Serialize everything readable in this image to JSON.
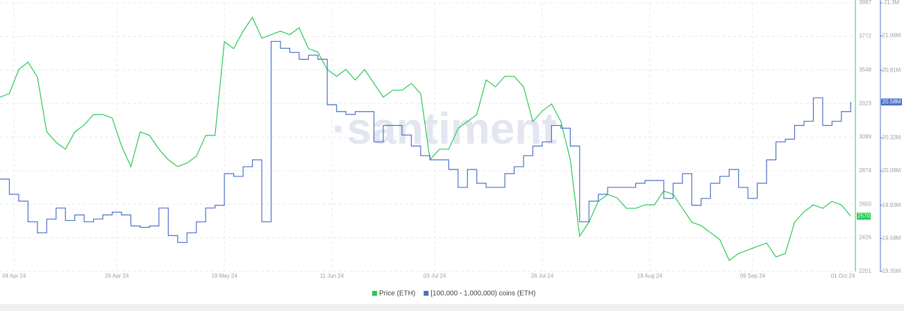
{
  "chart_data": {
    "type": "line",
    "watermark": "·santiment",
    "x": [
      "2024-04-01",
      "2024-04-03",
      "2024-04-05",
      "2024-04-07",
      "2024-04-09",
      "2024-04-11",
      "2024-04-13",
      "2024-04-15",
      "2024-04-17",
      "2024-04-19",
      "2024-04-21",
      "2024-04-23",
      "2024-04-25",
      "2024-04-27",
      "2024-04-29",
      "2024-05-01",
      "2024-05-03",
      "2024-05-05",
      "2024-05-07",
      "2024-05-09",
      "2024-05-11",
      "2024-05-13",
      "2024-05-15",
      "2024-05-17",
      "2024-05-19",
      "2024-05-21",
      "2024-05-23",
      "2024-05-25",
      "2024-05-27",
      "2024-05-29",
      "2024-05-31",
      "2024-06-02",
      "2024-06-04",
      "2024-06-06",
      "2024-06-08",
      "2024-06-10",
      "2024-06-12",
      "2024-06-14",
      "2024-06-16",
      "2024-06-18",
      "2024-06-20",
      "2024-06-22",
      "2024-06-24",
      "2024-06-26",
      "2024-06-28",
      "2024-06-30",
      "2024-07-02",
      "2024-07-04",
      "2024-07-06",
      "2024-07-08",
      "2024-07-10",
      "2024-07-12",
      "2024-07-14",
      "2024-07-16",
      "2024-07-18",
      "2024-07-20",
      "2024-07-22",
      "2024-07-24",
      "2024-07-26",
      "2024-07-28",
      "2024-07-30",
      "2024-08-01",
      "2024-08-03",
      "2024-08-05",
      "2024-08-07",
      "2024-08-09",
      "2024-08-11",
      "2024-08-13",
      "2024-08-15",
      "2024-08-17",
      "2024-08-19",
      "2024-08-21",
      "2024-08-23",
      "2024-08-25",
      "2024-08-27",
      "2024-08-29",
      "2024-08-31",
      "2024-09-02",
      "2024-09-04",
      "2024-09-06",
      "2024-09-08",
      "2024-09-10",
      "2024-09-12",
      "2024-09-14",
      "2024-09-16",
      "2024-09-18",
      "2024-09-20",
      "2024-09-22",
      "2024-09-24",
      "2024-09-26",
      "2024-09-28",
      "2024-09-30"
    ],
    "xlim": [
      "2024-04-01",
      "2024-10-01"
    ],
    "xticks": [
      {
        "value": "2024-04-04",
        "label": "04 Apr 24"
      },
      {
        "value": "2024-04-26",
        "label": "26 Apr 24"
      },
      {
        "value": "2024-05-19",
        "label": "19 May 24"
      },
      {
        "value": "2024-06-11",
        "label": "11 Jun 24"
      },
      {
        "value": "2024-07-03",
        "label": "03 Jul 24"
      },
      {
        "value": "2024-07-26",
        "label": "26 Jul 24"
      },
      {
        "value": "2024-08-18",
        "label": "18 Aug 24"
      },
      {
        "value": "2024-09-09",
        "label": "09 Sep 24"
      },
      {
        "value": "2024-10-01",
        "label": "01 Oct 24"
      }
    ],
    "ylim": [
      2201,
      3997
    ],
    "yticks": [
      2201,
      2426,
      2650,
      2874,
      3099,
      3323,
      3548,
      3772,
      3997
    ],
    "y2lim": [
      19350000,
      21300000
    ],
    "y2ticks": [
      {
        "value": 19350000,
        "label": "19.35M"
      },
      {
        "value": 19590000,
        "label": "19.59M"
      },
      {
        "value": 19830000,
        "label": "19.83M"
      },
      {
        "value": 20080000,
        "label": "20.08M"
      },
      {
        "value": 20320000,
        "label": "20.32M"
      },
      {
        "value": 20580000,
        "label": "20.58M"
      },
      {
        "value": 20810000,
        "label": "20.81M"
      },
      {
        "value": 21060000,
        "label": "21.06M"
      },
      {
        "value": 21300000,
        "label": "21.3M"
      }
    ],
    "grid": true,
    "series": [
      {
        "name": "Price (ETH)",
        "color": "#26c953",
        "axis": "y",
        "step": false,
        "current_label": "2570",
        "values": [
          3366,
          3390,
          3551,
          3600,
          3500,
          3134,
          3064,
          3018,
          3134,
          3180,
          3250,
          3250,
          3227,
          3041,
          2902,
          3134,
          3110,
          3018,
          2948,
          2902,
          2925,
          2971,
          3110,
          3110,
          3737,
          3690,
          3807,
          3900,
          3760,
          3784,
          3807,
          3784,
          3830,
          3690,
          3667,
          3551,
          3505,
          3551,
          3481,
          3551,
          3458,
          3366,
          3412,
          3412,
          3458,
          3389,
          2948,
          3018,
          3018,
          3157,
          3203,
          3250,
          3481,
          3435,
          3505,
          3505,
          3435,
          3203,
          3273,
          3320,
          3203,
          2948,
          2437,
          2530,
          2669,
          2716,
          2693,
          2623,
          2623,
          2646,
          2646,
          2739,
          2716,
          2623,
          2530,
          2507,
          2460,
          2414,
          2275,
          2321,
          2344,
          2368,
          2391,
          2298,
          2321,
          2530,
          2600,
          2646,
          2623,
          2669,
          2646,
          2570
        ]
      },
      {
        "name": "[100,000  - 1,000,000) coins (ETH)",
        "color": "#4a6fc9",
        "axis": "y2",
        "step": true,
        "current_label": "20.58M",
        "values": [
          20020000,
          19910000,
          19860000,
          19710000,
          19630000,
          19730000,
          19810000,
          19720000,
          19760000,
          19710000,
          19730000,
          19760000,
          19780000,
          19760000,
          19680000,
          19670000,
          19680000,
          19810000,
          19610000,
          19560000,
          19630000,
          19710000,
          19810000,
          19830000,
          20060000,
          20040000,
          20110000,
          20160000,
          19710000,
          21020000,
          20970000,
          20940000,
          20890000,
          20920000,
          20890000,
          20560000,
          20510000,
          20490000,
          20510000,
          20510000,
          20290000,
          20410000,
          20410000,
          20340000,
          20260000,
          20190000,
          20160000,
          20160000,
          20090000,
          19960000,
          20090000,
          19990000,
          19960000,
          19960000,
          20060000,
          20110000,
          20190000,
          20260000,
          20290000,
          20410000,
          20390000,
          20260000,
          19710000,
          19860000,
          19910000,
          19960000,
          19960000,
          19960000,
          19990000,
          20010000,
          20010000,
          19880000,
          19990000,
          20060000,
          19830000,
          19880000,
          19990000,
          20040000,
          20090000,
          19960000,
          19880000,
          19990000,
          20160000,
          20290000,
          20310000,
          20410000,
          20440000,
          20610000,
          20410000,
          20440000,
          20510000,
          20580000
        ]
      }
    ]
  }
}
